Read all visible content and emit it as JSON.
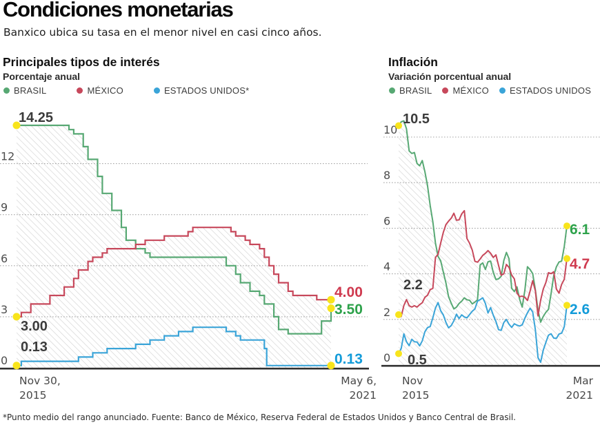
{
  "header": {
    "title": "Condiciones monetarias",
    "subtitle": "Banxico ubica su tasa en el menor nivel en casi cinco años."
  },
  "footnote": "*Punto medio del rango anunciado. Fuente: Banco de México, Reserva Federal de Estados Unidos y Banco Central de Brasil.",
  "palette": {
    "brasil": "#57a873",
    "mexico": "#c7485b",
    "us": "#3aa4d8",
    "brasil_text": "#2ea24b",
    "mexico_text": "#cf3a4f",
    "us_text": "#129bd9",
    "marker": "#f8e41c",
    "grid": "#a6a6a6",
    "hatch": "#d2d2d2",
    "axis": "#303030",
    "annotation": "#3b3b3b"
  },
  "chart_data": [
    {
      "id": "rates",
      "type": "step-line",
      "title": "Principales tipos de interés",
      "unit_label": "Porcentaje anual",
      "legend": [
        {
          "label": "BRASIL",
          "color": "brasil"
        },
        {
          "label": "MÉXICO",
          "color": "mexico"
        },
        {
          "label": "ESTADOS UNIDOS*",
          "color": "us"
        }
      ],
      "y_ticks": [
        0,
        3,
        6,
        9,
        12
      ],
      "ylim": [
        0,
        14.35
      ],
      "x_months_span": 66,
      "x_axis_labels": {
        "start": [
          "Nov 30,",
          "2015"
        ],
        "end": [
          "May 6,",
          "2021"
        ]
      },
      "grid": true,
      "hatch_fill": "area under upper envelope of series",
      "series": [
        {
          "name": "BRASIL",
          "color": "brasil",
          "start_label": "14.25",
          "end_label": "3.50",
          "steps": [
            [
              0,
              14.25
            ],
            [
              11,
              14.0
            ],
            [
              12,
              13.75
            ],
            [
              14,
              13.0
            ],
            [
              15,
              12.25
            ],
            [
              17,
              11.25
            ],
            [
              18,
              10.25
            ],
            [
              20,
              9.25
            ],
            [
              22,
              8.25
            ],
            [
              23,
              7.5
            ],
            [
              25,
              7.0
            ],
            [
              27,
              6.75
            ],
            [
              28,
              6.5
            ],
            [
              44,
              6.0
            ],
            [
              46,
              5.5
            ],
            [
              47,
              5.0
            ],
            [
              49,
              4.5
            ],
            [
              51,
              4.25
            ],
            [
              52,
              3.75
            ],
            [
              54,
              3.0
            ],
            [
              55,
              2.25
            ],
            [
              57,
              2.0
            ],
            [
              64,
              2.75
            ],
            [
              66,
              3.5
            ]
          ]
        },
        {
          "name": "MÉXICO",
          "color": "mexico",
          "start_label": "3.00",
          "end_label": "4.00",
          "steps": [
            [
              0,
              3.0
            ],
            [
              1,
              3.25
            ],
            [
              3,
              3.75
            ],
            [
              7,
              4.25
            ],
            [
              10,
              4.75
            ],
            [
              12,
              5.25
            ],
            [
              13,
              5.75
            ],
            [
              15,
              6.25
            ],
            [
              16,
              6.5
            ],
            [
              18,
              6.75
            ],
            [
              19,
              7.0
            ],
            [
              25,
              7.25
            ],
            [
              27,
              7.5
            ],
            [
              31,
              7.75
            ],
            [
              36,
              8.0
            ],
            [
              37,
              8.25
            ],
            [
              45,
              8.0
            ],
            [
              46,
              7.75
            ],
            [
              48,
              7.5
            ],
            [
              49,
              7.25
            ],
            [
              51,
              7.0
            ],
            [
              52,
              6.5
            ],
            [
              53,
              6.0
            ],
            [
              54,
              5.5
            ],
            [
              55,
              5.0
            ],
            [
              57,
              4.5
            ],
            [
              58,
              4.25
            ],
            [
              63,
              4.0
            ]
          ]
        },
        {
          "name": "ESTADOS UNIDOS",
          "color": "us",
          "start_label": "0.13",
          "end_label": "0.13",
          "steps": [
            [
              0,
              0.13
            ],
            [
              1,
              0.38
            ],
            [
              13,
              0.63
            ],
            [
              16,
              0.88
            ],
            [
              19,
              1.13
            ],
            [
              25,
              1.38
            ],
            [
              28,
              1.63
            ],
            [
              31,
              1.88
            ],
            [
              34,
              2.13
            ],
            [
              37,
              2.38
            ],
            [
              44,
              2.13
            ],
            [
              46,
              1.88
            ],
            [
              47,
              1.63
            ],
            [
              52,
              1.13
            ],
            [
              52.5,
              0.13
            ]
          ]
        }
      ]
    },
    {
      "id": "inflation",
      "type": "line",
      "title": "Inflación",
      "unit_label": "Variación porcentual anual",
      "legend": [
        {
          "label": "BRASIL",
          "color": "brasil"
        },
        {
          "label": "MÉXICO",
          "color": "mexico"
        },
        {
          "label": "ESTADOS UNIDOS",
          "color": "us"
        }
      ],
      "y_ticks": [
        0,
        2,
        4,
        6,
        8,
        10
      ],
      "ylim": [
        0,
        10.9
      ],
      "x_months_span": 64,
      "x_axis_labels": {
        "start": [
          "Nov",
          "2015"
        ],
        "end": [
          "Mar",
          "2021"
        ]
      },
      "grid": true,
      "hatch_fill": "area under upper envelope of series",
      "series": [
        {
          "name": "BRASIL",
          "color": "brasil",
          "start_label": "10.5",
          "end_label": "6.1",
          "values": [
            10.5,
            10.67,
            10.71,
            10.36,
            9.39,
            9.28,
            9.32,
            8.84,
            8.74,
            8.97,
            8.48,
            7.87,
            6.99,
            6.29,
            5.35,
            4.76,
            4.57,
            4.08,
            3.6,
            3.0,
            2.71,
            2.46,
            2.54,
            2.7,
            2.8,
            2.95,
            2.86,
            2.84,
            2.68,
            2.76,
            2.86,
            4.39,
            4.48,
            4.19,
            4.53,
            4.56,
            4.05,
            3.75,
            3.78,
            3.89,
            4.58,
            4.94,
            4.66,
            3.37,
            3.22,
            3.43,
            2.89,
            2.54,
            3.27,
            4.31,
            4.19,
            4.01,
            3.3,
            2.4,
            1.88,
            2.13,
            2.31,
            2.44,
            3.14,
            3.92,
            4.31,
            4.52,
            4.56,
            5.2,
            6.1
          ]
        },
        {
          "name": "MÉXICO",
          "color": "mexico",
          "start_label": "2.2",
          "end_label": "4.7",
          "values": [
            2.21,
            2.13,
            2.61,
            2.87,
            2.6,
            2.54,
            2.6,
            2.54,
            2.65,
            2.73,
            2.97,
            3.06,
            3.31,
            3.36,
            4.72,
            4.86,
            5.35,
            5.82,
            6.16,
            6.31,
            6.44,
            6.66,
            6.35,
            6.37,
            6.63,
            6.77,
            5.55,
            5.34,
            5.04,
            4.55,
            4.51,
            4.65,
            4.81,
            4.9,
            5.02,
            4.9,
            4.72,
            4.83,
            4.37,
            3.94,
            4.0,
            4.41,
            4.28,
            3.95,
            3.78,
            3.16,
            3.0,
            3.02,
            2.97,
            2.83,
            3.24,
            3.7,
            3.25,
            2.15,
            2.84,
            3.33,
            3.62,
            4.05,
            4.01,
            4.09,
            3.33,
            3.15,
            3.54,
            3.76,
            4.67
          ]
        },
        {
          "name": "ESTADOS UNIDOS",
          "color": "us",
          "start_label": "0.5",
          "end_label": "2.6",
          "values": [
            0.5,
            0.73,
            1.37,
            1.02,
            0.85,
            1.13,
            1.02,
            1.01,
            0.84,
            1.06,
            1.46,
            1.64,
            1.69,
            2.07,
            2.5,
            2.74,
            2.38,
            2.2,
            1.87,
            1.63,
            1.73,
            1.94,
            2.23,
            2.04,
            2.2,
            2.11,
            2.07,
            2.21,
            2.36,
            2.46,
            2.8,
            2.87,
            2.95,
            2.7,
            2.28,
            2.52,
            2.18,
            1.91,
            1.55,
            1.52,
            1.86,
            2.0,
            1.79,
            1.65,
            1.81,
            1.75,
            1.71,
            1.76,
            2.05,
            2.29,
            2.49,
            2.33,
            1.54,
            0.33,
            0.12,
            0.65,
            0.99,
            1.31,
            1.37,
            1.18,
            1.17,
            1.36,
            1.4,
            1.68,
            2.62
          ]
        }
      ]
    }
  ]
}
